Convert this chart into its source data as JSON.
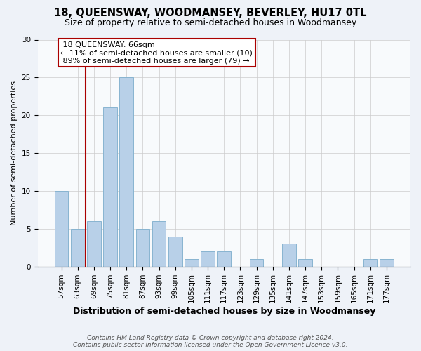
{
  "title": "18, QUEENSWAY, WOODMANSEY, BEVERLEY, HU17 0TL",
  "subtitle": "Size of property relative to semi-detached houses in Woodmansey",
  "xlabel": "Distribution of semi-detached houses by size in Woodmansey",
  "ylabel": "Number of semi-detached properties",
  "categories": [
    "57sqm",
    "63sqm",
    "69sqm",
    "75sqm",
    "81sqm",
    "87sqm",
    "93sqm",
    "99sqm",
    "105sqm",
    "111sqm",
    "117sqm",
    "123sqm",
    "129sqm",
    "135sqm",
    "141sqm",
    "147sqm",
    "153sqm",
    "159sqm",
    "165sqm",
    "171sqm",
    "177sqm"
  ],
  "values": [
    10,
    5,
    6,
    21,
    25,
    5,
    6,
    4,
    1,
    2,
    2,
    0,
    1,
    0,
    3,
    1,
    0,
    0,
    0,
    1,
    1
  ],
  "bar_color": "#b8d0e8",
  "bar_edge_color": "#88b4d0",
  "ylim": [
    0,
    30
  ],
  "yticks": [
    0,
    5,
    10,
    15,
    20,
    25,
    30
  ],
  "property_label": "18 QUEENSWAY: 66sqm",
  "smaller_pct": "11%",
  "smaller_count": 10,
  "larger_pct": "89%",
  "larger_count": 79,
  "vline_x_idx": 1.5,
  "vline_color": "#aa0000",
  "box_color": "#aa0000",
  "footer_line1": "Contains HM Land Registry data © Crown copyright and database right 2024.",
  "footer_line2": "Contains public sector information licensed under the Open Government Licence v3.0.",
  "bg_color": "#eef2f8",
  "plot_bg_color": "#f8fafc",
  "title_fontsize": 10.5,
  "subtitle_fontsize": 9,
  "xlabel_fontsize": 9,
  "ylabel_fontsize": 8,
  "tick_fontsize": 7.5,
  "footer_fontsize": 6.5,
  "annotation_fontsize": 8
}
